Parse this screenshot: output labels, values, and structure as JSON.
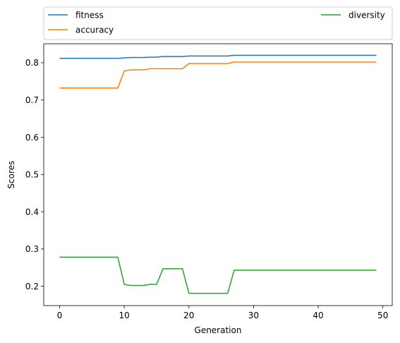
{
  "chart_data": {
    "type": "line",
    "xlabel": "Generation",
    "ylabel": "Scores",
    "xlim": [
      -2.45,
      51.45
    ],
    "ylim": [
      0.148,
      0.851
    ],
    "xticks": [
      0,
      10,
      20,
      30,
      40,
      50
    ],
    "yticks": [
      0.2,
      0.3,
      0.4,
      0.5,
      0.6,
      0.7,
      0.8
    ],
    "grid": false,
    "legend_placement": "top, above plot, two columns",
    "series": [
      {
        "name": "fitness",
        "color": "#1f77b4",
        "x": [
          0,
          9,
          10,
          11,
          13,
          14,
          15,
          16,
          19,
          20,
          26,
          27,
          49
        ],
        "y": [
          0.812,
          0.812,
          0.813,
          0.814,
          0.814,
          0.815,
          0.815,
          0.817,
          0.817,
          0.818,
          0.818,
          0.82,
          0.82
        ]
      },
      {
        "name": "accuracy",
        "color": "#ff7f0e",
        "x": [
          0,
          9,
          10,
          11,
          13,
          14,
          19,
          20,
          26,
          27,
          49
        ],
        "y": [
          0.732,
          0.732,
          0.778,
          0.781,
          0.781,
          0.784,
          0.784,
          0.798,
          0.798,
          0.802,
          0.802
        ]
      },
      {
        "name": "diversity",
        "color": "#2ca02c",
        "x": [
          0,
          9,
          10,
          11,
          13,
          14,
          15,
          16,
          19,
          20,
          26,
          27,
          49
        ],
        "y": [
          0.278,
          0.278,
          0.205,
          0.202,
          0.202,
          0.205,
          0.205,
          0.247,
          0.247,
          0.181,
          0.181,
          0.243,
          0.243
        ]
      }
    ]
  }
}
